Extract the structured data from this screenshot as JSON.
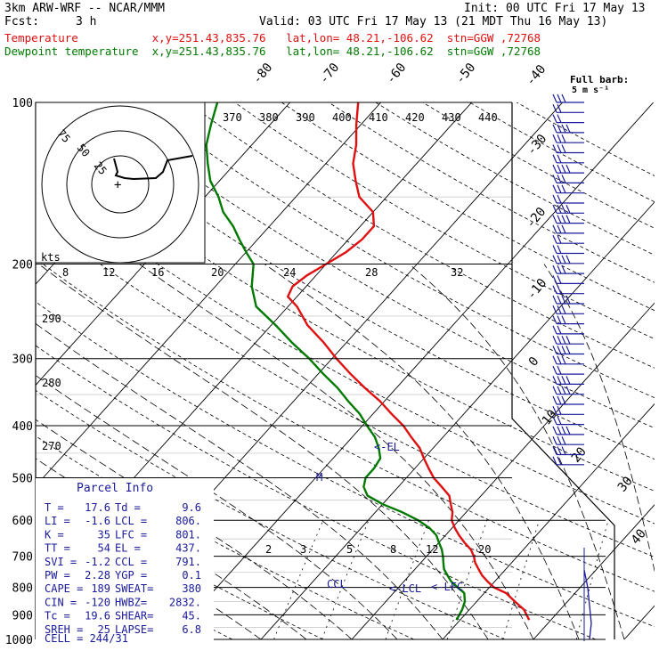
{
  "header": {
    "model": "3km ARW-WRF -- NCAR/MMM",
    "init": "Init: 00 UTC Fri 17 May 13",
    "fcst_label": "Fcst:",
    "fcst_value": "3 h",
    "valid": "Valid: 03 UTC Fri 17 May 13 (21 MDT Thu 16 May 13)",
    "temp_line": "Temperature           x,y=251.43,835.76   lat,lon= 48.21,-106.62  stn=GGW ,72768",
    "dew_line": "Dewpoint temperature  x,y=251.43,835.76   lat,lon= 48.21,-106.62  stn=GGW ,72768"
  },
  "colors": {
    "temperature": "#e01010",
    "dewpoint": "#007a00",
    "barbs": "#1a1a9a",
    "info": "#1a1a9a"
  },
  "barb_legend": {
    "line1": "Full barb:",
    "line2": "5 m s⁻¹"
  },
  "parcel_info": {
    "title": "Parcel Info",
    "rows": [
      [
        "T  =",
        "17.6",
        "Td =",
        "9.6"
      ],
      [
        "LI =",
        "-1.6",
        "LCL =",
        "806."
      ],
      [
        "K  =",
        "35",
        "LFC =",
        "801."
      ],
      [
        "TT =",
        "54",
        "EL =",
        "437."
      ],
      [
        "SVI =",
        "-1.2",
        "CCL =",
        "791."
      ],
      [
        "PW =",
        "2.28",
        "YGP =",
        "0.1"
      ],
      [
        "CAPE =",
        "189",
        "SWEAT=",
        "380"
      ],
      [
        "CIN =",
        "-120",
        "HWBZ=",
        "2832."
      ],
      [
        "Tc =",
        "19.6",
        "SHEAR=",
        "45."
      ],
      [
        "SREH =",
        "25",
        "LAPSE=",
        "6.8"
      ]
    ],
    "cell": "CELL = 244/31"
  },
  "hodograph": {
    "rings": [
      "75",
      "50",
      "25"
    ],
    "units": "kts"
  },
  "chart_data": {
    "type": "line",
    "title": "",
    "xlabel": "",
    "ylabel": "",
    "y_scale": "log",
    "ylim": [
      1000,
      100
    ],
    "pressure_ticks": [
      100,
      200,
      300,
      400,
      500,
      600,
      700,
      800,
      900,
      1000
    ],
    "series": [
      {
        "name": "Temperature",
        "points": [
          [
            920,
            17.6
          ],
          [
            880,
            16.0
          ],
          [
            850,
            14.2
          ],
          [
            820,
            12.4
          ],
          [
            800,
            10.5
          ],
          [
            780,
            9.2
          ],
          [
            760,
            8.0
          ],
          [
            740,
            7.0
          ],
          [
            720,
            6.0
          ],
          [
            700,
            5.2
          ],
          [
            680,
            4.2
          ],
          [
            660,
            2.8
          ],
          [
            640,
            1.5
          ],
          [
            620,
            0.3
          ],
          [
            600,
            -0.8
          ],
          [
            580,
            -1.5
          ],
          [
            560,
            -2.5
          ],
          [
            540,
            -3.5
          ],
          [
            520,
            -5.2
          ],
          [
            500,
            -7.0
          ],
          [
            480,
            -8.5
          ],
          [
            460,
            -10.0
          ],
          [
            440,
            -11.5
          ],
          [
            420,
            -13.5
          ],
          [
            400,
            -15.5
          ],
          [
            380,
            -18.0
          ],
          [
            360,
            -20.5
          ],
          [
            340,
            -23.5
          ],
          [
            320,
            -26.5
          ],
          [
            300,
            -29.5
          ],
          [
            280,
            -32.5
          ],
          [
            260,
            -36.0
          ],
          [
            240,
            -39.0
          ],
          [
            230,
            -41.0
          ],
          [
            220,
            -41.5
          ],
          [
            210,
            -41.0
          ],
          [
            200,
            -40.0
          ],
          [
            190,
            -39.0
          ],
          [
            180,
            -38.5
          ],
          [
            170,
            -38.5
          ],
          [
            160,
            -40.0
          ],
          [
            150,
            -43.0
          ],
          [
            140,
            -45.0
          ],
          [
            130,
            -47.0
          ],
          [
            120,
            -48.5
          ],
          [
            110,
            -50.5
          ],
          [
            100,
            -52.5
          ]
        ]
      },
      {
        "name": "Dewpoint temperature",
        "points": [
          [
            920,
            9.6
          ],
          [
            880,
            9.2
          ],
          [
            850,
            8.7
          ],
          [
            820,
            7.8
          ],
          [
            800,
            6.5
          ],
          [
            780,
            5.2
          ],
          [
            760,
            4.2
          ],
          [
            740,
            3.2
          ],
          [
            720,
            2.5
          ],
          [
            700,
            1.8
          ],
          [
            680,
            1.0
          ],
          [
            660,
            0.0
          ],
          [
            640,
            -1.0
          ],
          [
            620,
            -2.5
          ],
          [
            600,
            -4.5
          ],
          [
            580,
            -7.0
          ],
          [
            560,
            -10.0
          ],
          [
            540,
            -12.5
          ],
          [
            520,
            -13.8
          ],
          [
            500,
            -14.5
          ],
          [
            480,
            -14.5
          ],
          [
            460,
            -14.8
          ],
          [
            440,
            -16.0
          ],
          [
            420,
            -17.5
          ],
          [
            400,
            -19.5
          ],
          [
            380,
            -21.5
          ],
          [
            360,
            -24.0
          ],
          [
            340,
            -26.5
          ],
          [
            320,
            -29.5
          ],
          [
            300,
            -32.5
          ],
          [
            280,
            -36.0
          ],
          [
            260,
            -39.5
          ],
          [
            240,
            -43.5
          ],
          [
            220,
            -46.0
          ],
          [
            200,
            -48.0
          ],
          [
            190,
            -50.0
          ],
          [
            180,
            -52.0
          ],
          [
            170,
            -54.0
          ],
          [
            160,
            -56.5
          ],
          [
            150,
            -58.5
          ],
          [
            140,
            -61.0
          ],
          [
            130,
            -63.0
          ],
          [
            120,
            -65.0
          ],
          [
            110,
            -66.5
          ],
          [
            100,
            -68.0
          ]
        ]
      }
    ],
    "isotherm_labels": [
      "-80",
      "-70",
      "-60",
      "-50",
      "-40",
      "-30",
      "-20",
      "-10",
      "0",
      "10",
      "20",
      "30",
      "40"
    ],
    "theta_labels": [
      "370",
      "380",
      "390",
      "400",
      "410",
      "420",
      "430",
      "440"
    ],
    "mixing_ratio_labels_top": [
      "8",
      "12",
      "16",
      "20",
      "24",
      "28",
      "32"
    ],
    "mixing_ratio_labels_low": [
      "2",
      "3",
      "5",
      "8",
      "12",
      "20"
    ],
    "theta_side_labels": [
      "290",
      "280",
      "270"
    ],
    "levels": {
      "EL": "EL",
      "M": "M",
      "CCL": "CCL",
      "LCL": "LCL",
      "LFC": "LFC"
    }
  }
}
